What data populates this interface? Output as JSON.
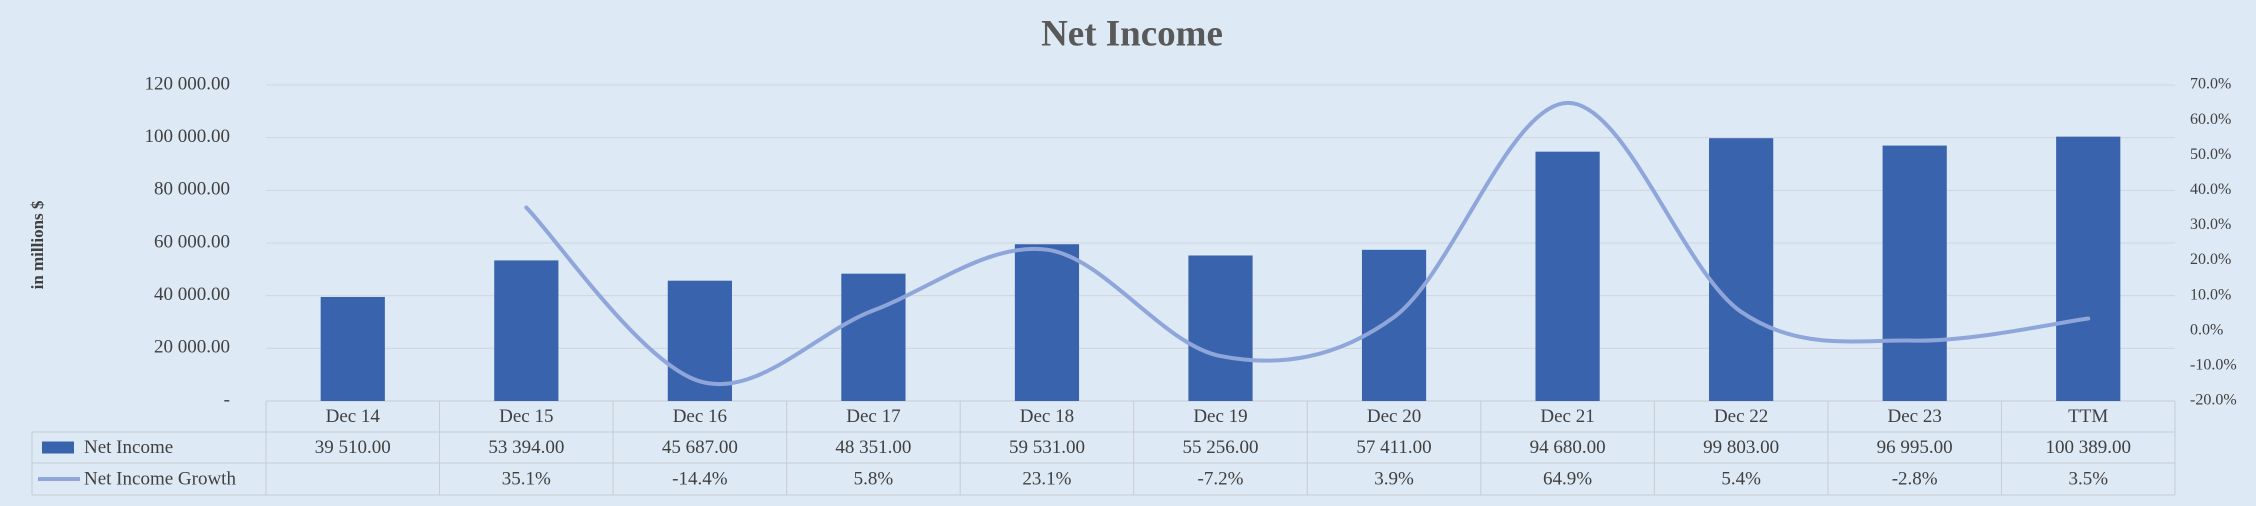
{
  "chart_data": {
    "type": "bar",
    "title": "Net Income",
    "y_label": "in millions $",
    "categories": [
      "Dec 14",
      "Dec 15",
      "Dec 16",
      "Dec 17",
      "Dec 18",
      "Dec 19",
      "Dec 20",
      "Dec 21",
      "Dec 22",
      "Dec 23",
      "TTM"
    ],
    "series": [
      {
        "name": "Net Income",
        "type": "bar",
        "color": "#3a63ad",
        "values": [
          39510,
          53394,
          45687,
          48351,
          59531,
          55256,
          57411,
          94680,
          99803,
          96995,
          100389
        ],
        "value_labels": [
          "39 510.00",
          "53 394.00",
          "45 687.00",
          "48 351.00",
          "59 531.00",
          "55 256.00",
          "57 411.00",
          "94 680.00",
          "99 803.00",
          "96 995.00",
          "100 389.00"
        ]
      },
      {
        "name": "Net Income Growth",
        "type": "line",
        "axis": "y2",
        "color": "#8fa6db",
        "values": [
          null,
          35.1,
          -14.4,
          5.8,
          23.1,
          -7.2,
          3.9,
          64.9,
          5.4,
          -2.8,
          3.5
        ],
        "value_labels": [
          null,
          "35.1%",
          "-14.4%",
          "5.8%",
          "23.1%",
          "-7.2%",
          "3.9%",
          "64.9%",
          "5.4%",
          "-2.8%",
          "3.5%"
        ]
      }
    ],
    "ylim": [
      0,
      120000
    ],
    "yticks": [
      {
        "value": 0,
        "label": "-"
      },
      {
        "value": 20000,
        "label": "20 000.00"
      },
      {
        "value": 40000,
        "label": "40 000.00"
      },
      {
        "value": 60000,
        "label": "60 000.00"
      },
      {
        "value": 80000,
        "label": "80 000.00"
      },
      {
        "value": 100000,
        "label": "100 000.00"
      },
      {
        "value": 120000,
        "label": "120 000.00"
      }
    ],
    "y2lim": [
      -20,
      70
    ],
    "y2ticks": [
      {
        "value": -20,
        "label": "-20.0%"
      },
      {
        "value": -10,
        "label": "-10.0%"
      },
      {
        "value": 0,
        "label": "0.0%"
      },
      {
        "value": 10,
        "label": "10.0%"
      },
      {
        "value": 20,
        "label": "20.0%"
      },
      {
        "value": 30,
        "label": "30.0%"
      },
      {
        "value": 40,
        "label": "40.0%"
      },
      {
        "value": 50,
        "label": "50.0%"
      },
      {
        "value": 60,
        "label": "60.0%"
      },
      {
        "value": 70,
        "label": "70.0%"
      }
    ],
    "grid": true
  }
}
